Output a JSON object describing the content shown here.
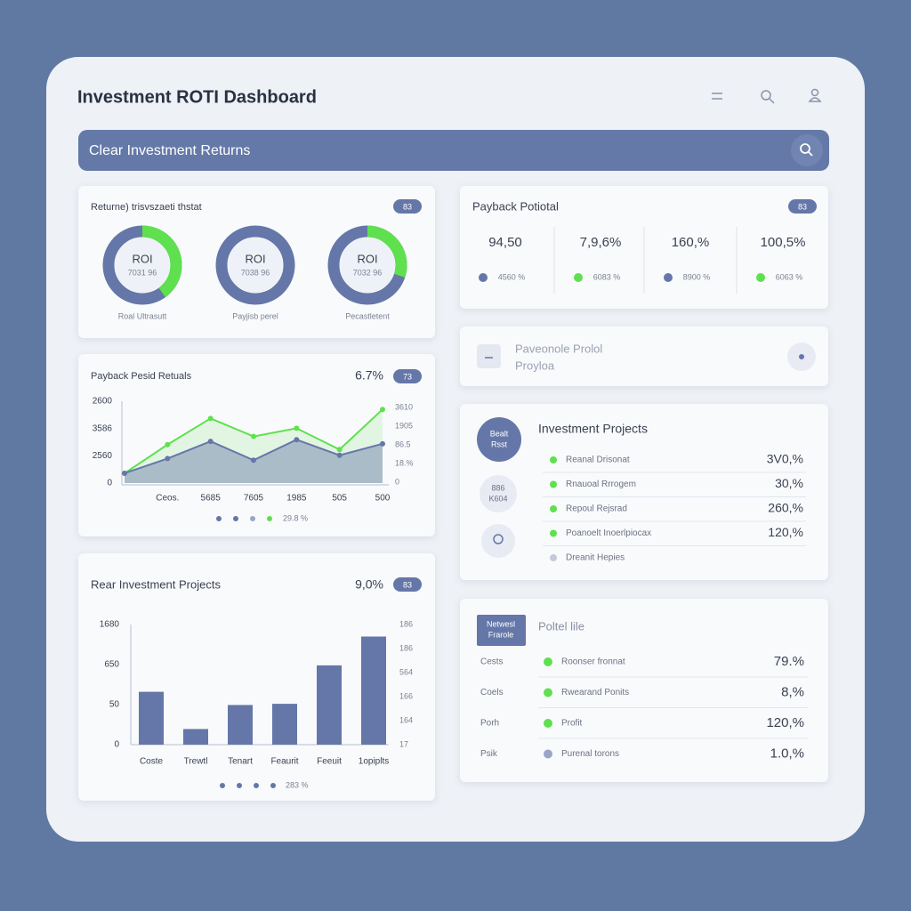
{
  "header": {
    "title": "Investment ROTI Dashboard"
  },
  "search": {
    "placeholder": "Clear Investment Returns"
  },
  "returns_card": {
    "title": "Returne) trisvszaeti thstat",
    "badge": "83",
    "ring_color": "#6577a8",
    "fill_color": "#5fe04f",
    "donuts": [
      {
        "label": "ROI",
        "sublabel": "7031 96",
        "caption": "Roal Ultrasutt",
        "value": 40
      },
      {
        "label": "ROI",
        "sublabel": "7038 96",
        "caption": "Payjisb perel",
        "value": 0
      },
      {
        "label": "ROI",
        "sublabel": "7032 96",
        "caption": "Pecastletent",
        "value": 30
      }
    ]
  },
  "payback_card": {
    "title": "Payback Potiotal",
    "badge": "83",
    "stats": [
      {
        "value": "94,50",
        "sublabel": "4560 %",
        "color": "#6577a8"
      },
      {
        "value": "7,9,6%",
        "sublabel": "6083 %",
        "color": "#5fe04f"
      },
      {
        "value": "160,%",
        "sublabel": "8900 %",
        "color": "#6577a8"
      },
      {
        "value": "100,5%",
        "sublabel": "6063 %",
        "color": "#5fe04f"
      }
    ]
  },
  "project_card": {
    "lines": [
      "Paveonole Prolol",
      "Proyloa"
    ]
  },
  "projects_card": {
    "title": "Investment Projects",
    "avatars": [
      [
        "Bealt",
        "Rsst"
      ],
      [
        "886",
        "K604"
      ]
    ],
    "rows": [
      {
        "name": "Reanal Drisonat",
        "value": "3V0,%",
        "color": "#5fe04f"
      },
      {
        "name": "Rnauoal Rrrogem",
        "value": "30,%",
        "color": "#5fe04f"
      },
      {
        "name": "Repoul Rejsrad",
        "value": "260,%",
        "color": "#5fe04f"
      },
      {
        "name": "Poanoelt Inoerlpiocax",
        "value": "120,%",
        "color": "#5fe04f"
      },
      {
        "name": "Dreanit Hepies",
        "color": "#c5cad8"
      }
    ]
  },
  "line_chart": {
    "type": "line",
    "title": "Payback Pesid Retuals",
    "value": "6.7%",
    "badge": "73",
    "categories": [
      null,
      "Ceos.",
      "5685",
      "7605",
      "1985",
      "505",
      "500"
    ],
    "ylim": [
      0,
      100
    ],
    "y_labels": [
      "2600",
      "3586",
      "2560",
      "0"
    ],
    "y2_labels": [
      "3610",
      "1905",
      "86.5",
      "18.%",
      "0"
    ],
    "series": [
      {
        "color": "#5fe04f",
        "values": [
          12,
          47,
          79,
          57,
          67,
          41,
          90
        ]
      },
      {
        "color": "#6577a8",
        "values": [
          12,
          30,
          51,
          28,
          53,
          34,
          48
        ]
      }
    ],
    "legend_note": "29.8 %"
  },
  "bar_chart": {
    "type": "bar",
    "title": "Rear Investment Projects",
    "value": "9,0%",
    "badge": "83",
    "categories": [
      "Coste",
      "Trewtl",
      "Tenart",
      "Feaurit",
      "Feeuit",
      "1opiplts"
    ],
    "values": [
      44,
      13,
      33,
      34,
      66,
      90
    ],
    "color": "#6577a8",
    "ylim": [
      0,
      100
    ],
    "y_labels": [
      "1680",
      "650",
      "50",
      "0"
    ],
    "y2_labels": [
      "186",
      "186",
      "564",
      "166",
      "164",
      "17"
    ],
    "legend_note": "283 %"
  },
  "portfolio_card": {
    "badge": [
      "Netwesl",
      "Frarole"
    ],
    "title": "Poltel lile",
    "rows": [
      {
        "label": "Cests",
        "name": "Roonser fronnat",
        "value": "79.%",
        "color": "#5fe04f"
      },
      {
        "label": "Coels",
        "name": "Rwearand Ponits",
        "value": "8,%",
        "color": "#5fe04f"
      },
      {
        "label": "Porh",
        "name": "Profit",
        "value": "120,%",
        "color": "#5fe04f"
      },
      {
        "label": "Psik",
        "name": "Purenal torons",
        "value": "1.0,%",
        "color": "#9aa6c6"
      }
    ]
  }
}
